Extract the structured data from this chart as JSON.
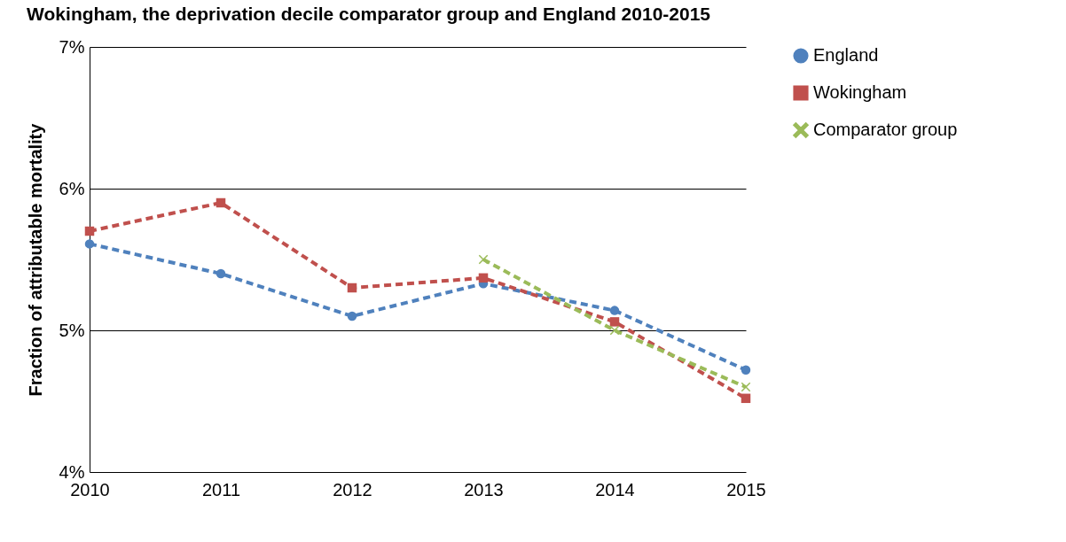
{
  "chart_data": {
    "type": "line",
    "title": "Wokingham, the deprivation decile comparator group and England 2010-2015",
    "ylabel": "Fraction of attributable mortality",
    "x": [
      2010,
      2011,
      2012,
      2013,
      2014,
      2015
    ],
    "series": [
      {
        "name": "England",
        "color": "#4f81bd",
        "marker": "circle",
        "values": [
          5.61,
          5.4,
          5.1,
          5.33,
          5.14,
          4.72
        ]
      },
      {
        "name": "Wokingham",
        "color": "#c0504d",
        "marker": "square",
        "values": [
          5.7,
          5.9,
          5.3,
          5.37,
          5.06,
          4.52
        ]
      },
      {
        "name": "Comparator group",
        "color": "#9bbb59",
        "marker": "cross",
        "x": [
          2013,
          2014,
          2015
        ],
        "values": [
          5.5,
          5.0,
          4.6
        ]
      }
    ],
    "xlim": [
      2010,
      2015
    ],
    "xticks": [
      2010,
      2011,
      2012,
      2013,
      2014,
      2015
    ],
    "ylim": [
      4,
      7
    ],
    "yticks": [
      {
        "value": 4,
        "label": "4%"
      },
      {
        "value": 5,
        "label": "5%"
      },
      {
        "value": 6,
        "label": "6%"
      },
      {
        "value": 7,
        "label": "7%"
      }
    ],
    "grid": "y",
    "legend": "right",
    "line_style": "dashed"
  }
}
